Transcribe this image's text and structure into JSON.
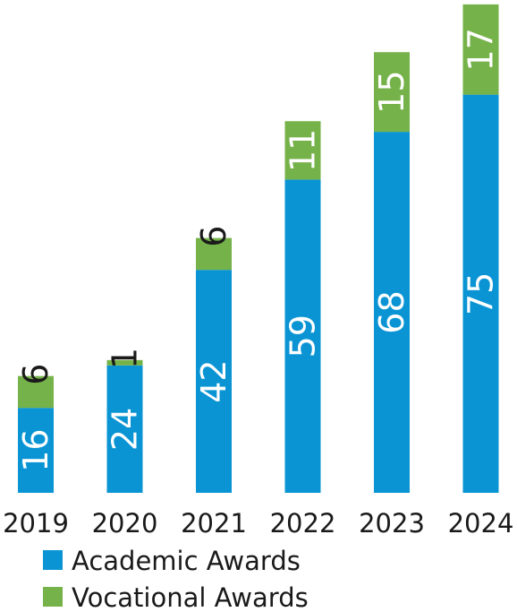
{
  "colors": {
    "academic": "#0a94d3",
    "vocational": "#76b24a",
    "label_on_bar": "#ffffff",
    "label_small": "#1a1a1a"
  },
  "chart_data": {
    "type": "bar",
    "stacked": true,
    "categories": [
      "2019",
      "2020",
      "2021",
      "2022",
      "2023",
      "2024"
    ],
    "series": [
      {
        "name": "Academic Awards",
        "values": [
          16,
          24,
          42,
          59,
          68,
          75
        ]
      },
      {
        "name": "Vocational Awards",
        "values": [
          6,
          1,
          6,
          11,
          15,
          17
        ]
      }
    ],
    "value_labels": "rotated-on-bar",
    "ylim": [
      0,
      92
    ],
    "grid": false,
    "legend": "bottom-left"
  }
}
